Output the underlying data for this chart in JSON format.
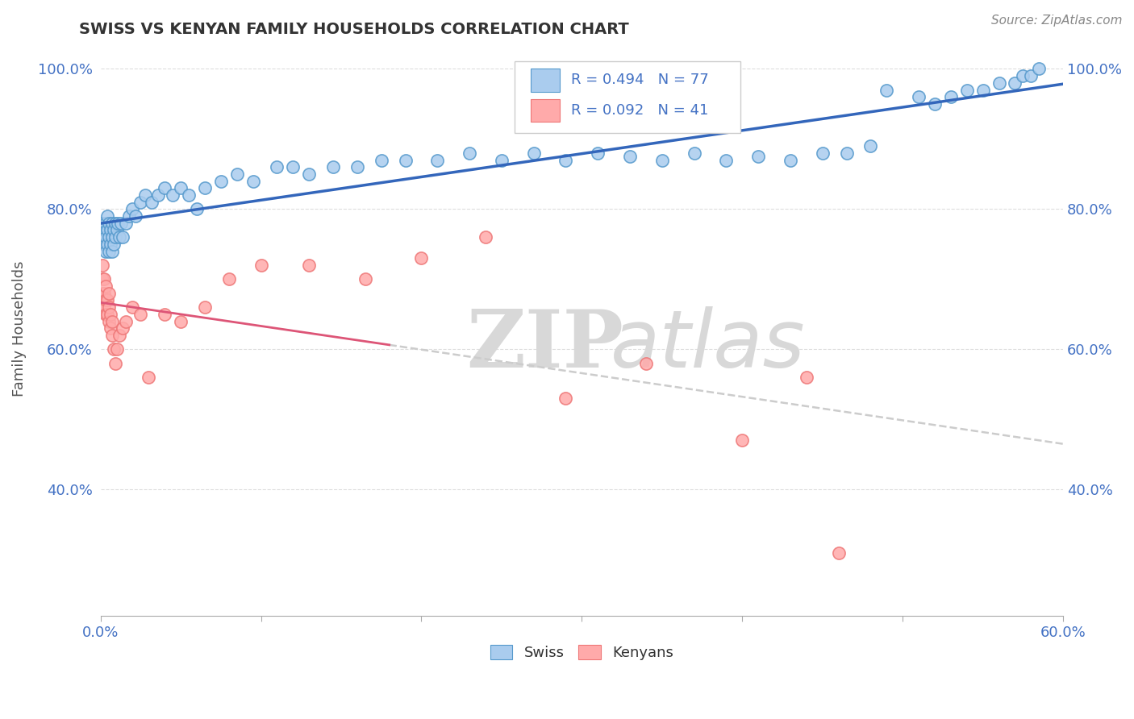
{
  "title": "SWISS VS KENYAN FAMILY HOUSEHOLDS CORRELATION CHART",
  "source": "Source: ZipAtlas.com",
  "ylabel": "Family Households",
  "ytick_labels": [
    "40.0%",
    "60.0%",
    "80.0%",
    "100.0%"
  ],
  "ytick_values": [
    0.4,
    0.6,
    0.8,
    1.0
  ],
  "xlim": [
    0.0,
    0.6
  ],
  "ylim": [
    0.22,
    1.04
  ],
  "swiss_color": "#aaccee",
  "swiss_edge_color": "#5599cc",
  "kenyan_color": "#ffaaaa",
  "kenyan_edge_color": "#ee7777",
  "swiss_line_color": "#3366bb",
  "kenyan_line_color": "#dd5577",
  "kenyan_dashed_color": "#cccccc",
  "r_swiss": 0.494,
  "n_swiss": 77,
  "r_kenyan": 0.092,
  "n_kenyan": 41,
  "swiss_scatter_x": [
    0.001,
    0.001,
    0.002,
    0.002,
    0.003,
    0.003,
    0.003,
    0.004,
    0.004,
    0.004,
    0.005,
    0.005,
    0.005,
    0.006,
    0.006,
    0.007,
    0.007,
    0.007,
    0.008,
    0.008,
    0.009,
    0.009,
    0.01,
    0.011,
    0.012,
    0.013,
    0.014,
    0.016,
    0.018,
    0.02,
    0.022,
    0.025,
    0.028,
    0.032,
    0.036,
    0.04,
    0.045,
    0.05,
    0.055,
    0.06,
    0.065,
    0.075,
    0.085,
    0.095,
    0.11,
    0.12,
    0.13,
    0.145,
    0.16,
    0.175,
    0.19,
    0.21,
    0.23,
    0.25,
    0.27,
    0.29,
    0.31,
    0.33,
    0.35,
    0.37,
    0.39,
    0.41,
    0.43,
    0.45,
    0.465,
    0.48,
    0.49,
    0.51,
    0.52,
    0.53,
    0.54,
    0.55,
    0.56,
    0.57,
    0.575,
    0.58,
    0.585
  ],
  "swiss_scatter_y": [
    0.76,
    0.78,
    0.75,
    0.77,
    0.74,
    0.76,
    0.78,
    0.75,
    0.77,
    0.79,
    0.74,
    0.76,
    0.78,
    0.75,
    0.77,
    0.74,
    0.76,
    0.78,
    0.75,
    0.77,
    0.76,
    0.78,
    0.77,
    0.78,
    0.76,
    0.78,
    0.76,
    0.78,
    0.79,
    0.8,
    0.79,
    0.81,
    0.82,
    0.81,
    0.82,
    0.83,
    0.82,
    0.83,
    0.82,
    0.8,
    0.83,
    0.84,
    0.85,
    0.84,
    0.86,
    0.86,
    0.85,
    0.86,
    0.86,
    0.87,
    0.87,
    0.87,
    0.88,
    0.87,
    0.88,
    0.87,
    0.88,
    0.875,
    0.87,
    0.88,
    0.87,
    0.875,
    0.87,
    0.88,
    0.88,
    0.89,
    0.97,
    0.96,
    0.95,
    0.96,
    0.97,
    0.97,
    0.98,
    0.98,
    0.99,
    0.99,
    1.0
  ],
  "kenyan_scatter_x": [
    0.001,
    0.001,
    0.001,
    0.002,
    0.002,
    0.002,
    0.003,
    0.003,
    0.003,
    0.004,
    0.004,
    0.005,
    0.005,
    0.005,
    0.006,
    0.006,
    0.007,
    0.007,
    0.008,
    0.009,
    0.01,
    0.012,
    0.014,
    0.016,
    0.02,
    0.025,
    0.03,
    0.04,
    0.05,
    0.065,
    0.08,
    0.1,
    0.13,
    0.165,
    0.2,
    0.24,
    0.29,
    0.34,
    0.4,
    0.44,
    0.46
  ],
  "kenyan_scatter_y": [
    0.68,
    0.7,
    0.72,
    0.66,
    0.68,
    0.7,
    0.65,
    0.67,
    0.69,
    0.65,
    0.67,
    0.64,
    0.66,
    0.68,
    0.63,
    0.65,
    0.62,
    0.64,
    0.6,
    0.58,
    0.6,
    0.62,
    0.63,
    0.64,
    0.66,
    0.65,
    0.56,
    0.65,
    0.64,
    0.66,
    0.7,
    0.72,
    0.72,
    0.7,
    0.73,
    0.76,
    0.53,
    0.58,
    0.47,
    0.56,
    0.31
  ],
  "kenyan_line_x_end": 0.18,
  "watermark_zip": "ZIP",
  "watermark_atlas": "atlas",
  "watermark_color": "#d8d8d8",
  "background_color": "#ffffff",
  "grid_color": "#dddddd",
  "legend_box_color": "#eeeeee"
}
